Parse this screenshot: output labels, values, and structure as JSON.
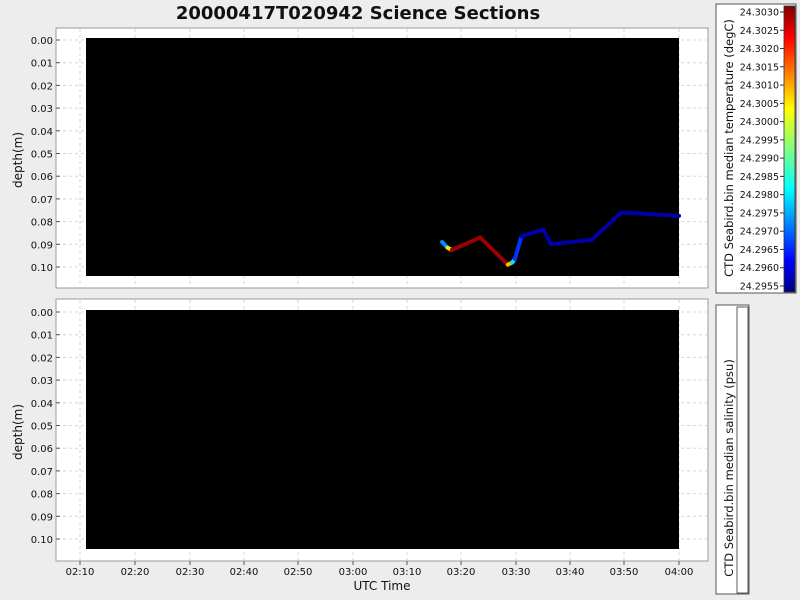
{
  "title": "20000417T020942 Science Sections",
  "colors": {
    "page_background": "#ededed",
    "panel_background": "#ffffff",
    "plot_fill": "#000000",
    "grid": "#d6d6d6",
    "border": "#8c8c8c"
  },
  "chart_data": [
    {
      "type": "heatmap",
      "name": "temperature-section",
      "ylabel": "depth(m)",
      "xlabel": "",
      "y_ticks": [
        "0.00",
        "0.01",
        "0.02",
        "0.03",
        "0.04",
        "0.05",
        "0.06",
        "0.07",
        "0.08",
        "0.09",
        "0.10"
      ],
      "ylim": [
        0.0,
        0.105
      ],
      "y_inverted": true,
      "x_ticks": [
        "02:10",
        "02:20",
        "02:30",
        "02:40",
        "02:50",
        "03:00",
        "03:10",
        "03:20",
        "03:30",
        "03:40",
        "03:50",
        "04:00"
      ],
      "xlim_minutes": [
        126.5,
        240.0
      ],
      "grid": true,
      "colorbar": {
        "label": "CTD Seabird.bin median temperature (degC)",
        "colormap": "jet",
        "min": 24.2952,
        "max": 24.3032,
        "ticks": [
          "24.3030",
          "24.3025",
          "24.3020",
          "24.3015",
          "24.3010",
          "24.3005",
          "24.3000",
          "24.2995",
          "24.2990",
          "24.2985",
          "24.2980",
          "24.2975",
          "24.2970",
          "24.2965",
          "24.2960",
          "24.2955"
        ]
      },
      "track": [
        {
          "time_min": 196.5,
          "depth": 0.089,
          "value": 24.2968
        },
        {
          "time_min": 197.5,
          "depth": 0.0915,
          "value": 24.2978
        },
        {
          "time_min": 198.3,
          "depth": 0.0925,
          "value": 24.303
        },
        {
          "time_min": 203.5,
          "depth": 0.087,
          "value": 24.303
        },
        {
          "time_min": 208.5,
          "depth": 0.099,
          "value": 24.303
        },
        {
          "time_min": 209.3,
          "depth": 0.098,
          "value": 24.2985
        },
        {
          "time_min": 209.8,
          "depth": 0.0965,
          "value": 24.2975
        },
        {
          "time_min": 211.0,
          "depth": 0.0865,
          "value": 24.2957
        },
        {
          "time_min": 215.0,
          "depth": 0.0835,
          "value": 24.2955
        },
        {
          "time_min": 216.5,
          "depth": 0.09,
          "value": 24.2955
        },
        {
          "time_min": 224.0,
          "depth": 0.088,
          "value": 24.2955
        },
        {
          "time_min": 229.5,
          "depth": 0.076,
          "value": 24.2955
        },
        {
          "time_min": 240.0,
          "depth": 0.0775,
          "value": 24.2955
        }
      ]
    },
    {
      "type": "heatmap",
      "name": "salinity-section",
      "ylabel": "depth(m)",
      "xlabel": "UTC Time",
      "y_ticks": [
        "0.00",
        "0.01",
        "0.02",
        "0.03",
        "0.04",
        "0.05",
        "0.06",
        "0.07",
        "0.08",
        "0.09",
        "0.10"
      ],
      "ylim": [
        0.0,
        0.105
      ],
      "y_inverted": true,
      "x_ticks": [
        "02:10",
        "02:20",
        "02:30",
        "02:40",
        "02:50",
        "03:00",
        "03:10",
        "03:20",
        "03:30",
        "03:40",
        "03:50",
        "04:00"
      ],
      "xlim_minutes": [
        126.5,
        240.0
      ],
      "grid": true,
      "colorbar": {
        "label": "CTD Seabird.bin median salinity (psu)",
        "ticks": []
      },
      "track": []
    }
  ]
}
